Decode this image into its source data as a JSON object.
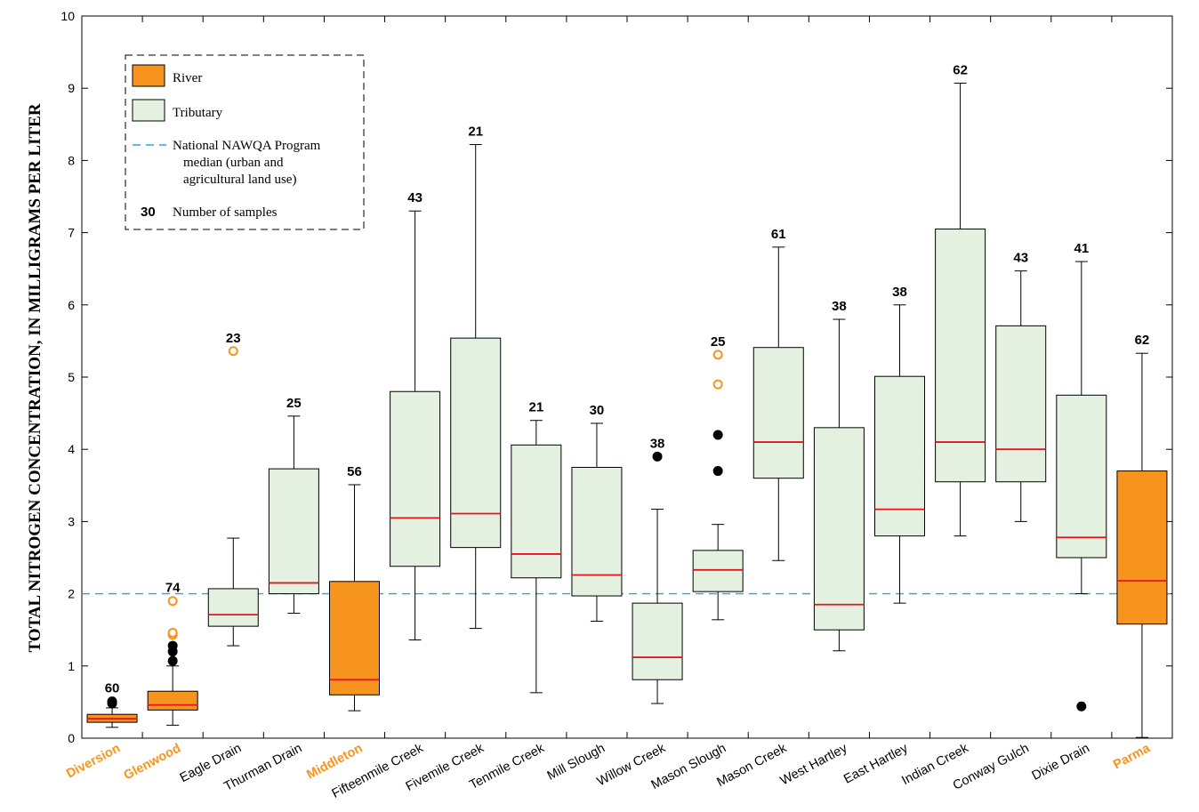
{
  "chart_data": {
    "type": "box",
    "ylabel": "TOTAL NITROGEN CONCENTRATION, IN MILLIGRAMS PER LITER",
    "ylim": [
      0,
      10
    ],
    "yticks": [
      0,
      1,
      2,
      3,
      4,
      5,
      6,
      7,
      8,
      9,
      10
    ],
    "reference_line": {
      "value": 2.0,
      "color": "#2aa5d8"
    },
    "colors": {
      "river": "#f7941d",
      "tributary": "#e4f1e0",
      "median": "#e8141b",
      "outlier_far": "#f7941d",
      "outlier_near": "#000000"
    },
    "legend": {
      "position": "top-left",
      "river_label": "River",
      "tributary_label": "Tributary",
      "reference_label_line1": "National NAWQA Program",
      "reference_label_line2": "median (urban and",
      "reference_label_line3": "agricultural land use)",
      "count_example": "30",
      "count_label": "Number of samples"
    },
    "sites": [
      {
        "name": "Diversion",
        "type": "river",
        "n": "60",
        "whisker_low": 0.15,
        "q1": 0.22,
        "median": 0.27,
        "q3": 0.33,
        "whisker_high": 0.42,
        "outliers_near": [
          0.48,
          0.51
        ],
        "outliers_far": []
      },
      {
        "name": "Glenwood",
        "type": "river",
        "n": "74",
        "whisker_low": 0.18,
        "q1": 0.39,
        "median": 0.46,
        "q3": 0.65,
        "whisker_high": 1.0,
        "outliers_near": [
          1.07,
          1.2,
          1.28
        ],
        "outliers_far": [
          1.43,
          1.46,
          1.9
        ]
      },
      {
        "name": "Eagle Drain",
        "type": "tributary",
        "n": "23",
        "whisker_low": 1.28,
        "q1": 1.55,
        "median": 1.71,
        "q3": 2.07,
        "whisker_high": 2.77,
        "outliers_near": [],
        "outliers_far": [
          5.36
        ]
      },
      {
        "name": "Thurman Drain",
        "type": "tributary",
        "n": "25",
        "whisker_low": 1.73,
        "q1": 2.0,
        "median": 2.15,
        "q3": 3.73,
        "whisker_high": 4.46,
        "outliers_near": [],
        "outliers_far": []
      },
      {
        "name": "Middleton",
        "type": "river",
        "n": "56",
        "whisker_low": 0.38,
        "q1": 0.6,
        "median": 0.81,
        "q3": 2.17,
        "whisker_high": 3.51,
        "outliers_near": [],
        "outliers_far": []
      },
      {
        "name": "Fifteenmile Creek",
        "type": "tributary",
        "n": "43",
        "whisker_low": 1.36,
        "q1": 2.38,
        "median": 3.05,
        "q3": 4.8,
        "whisker_high": 7.3,
        "outliers_near": [],
        "outliers_far": []
      },
      {
        "name": "Fivemile Creek",
        "type": "tributary",
        "n": "21",
        "whisker_low": 1.52,
        "q1": 2.64,
        "median": 3.11,
        "q3": 5.54,
        "whisker_high": 8.22,
        "outliers_near": [],
        "outliers_far": []
      },
      {
        "name": "Tenmile Creek",
        "type": "tributary",
        "n": "21",
        "whisker_low": 0.63,
        "q1": 2.22,
        "median": 2.55,
        "q3": 4.06,
        "whisker_high": 4.4,
        "outliers_near": [],
        "outliers_far": []
      },
      {
        "name": "Mill Slough",
        "type": "tributary",
        "n": "30",
        "whisker_low": 1.62,
        "q1": 1.97,
        "median": 2.26,
        "q3": 3.75,
        "whisker_high": 4.36,
        "outliers_near": [],
        "outliers_far": []
      },
      {
        "name": "Willow Creek",
        "type": "tributary",
        "n": "38",
        "whisker_low": 0.48,
        "q1": 0.81,
        "median": 1.12,
        "q3": 1.87,
        "whisker_high": 3.17,
        "outliers_near": [
          3.9
        ],
        "outliers_far": []
      },
      {
        "name": "Mason Slough",
        "type": "tributary",
        "n": "25",
        "whisker_low": 1.64,
        "q1": 2.03,
        "median": 2.33,
        "q3": 2.6,
        "whisker_high": 2.96,
        "outliers_near": [
          3.7,
          4.2
        ],
        "outliers_far": [
          4.9,
          5.31
        ]
      },
      {
        "name": "Mason Creek",
        "type": "tributary",
        "n": "61",
        "whisker_low": 2.46,
        "q1": 3.6,
        "median": 4.1,
        "q3": 5.41,
        "whisker_high": 6.8,
        "outliers_near": [],
        "outliers_far": []
      },
      {
        "name": "West Hartley",
        "type": "tributary",
        "n": "38",
        "whisker_low": 1.21,
        "q1": 1.5,
        "median": 1.85,
        "q3": 4.3,
        "whisker_high": 5.8,
        "outliers_near": [],
        "outliers_far": []
      },
      {
        "name": "East Hartley",
        "type": "tributary",
        "n": "38",
        "whisker_low": 1.87,
        "q1": 2.8,
        "median": 3.17,
        "q3": 5.01,
        "whisker_high": 6.0,
        "outliers_near": [],
        "outliers_far": []
      },
      {
        "name": "Indian Creek",
        "type": "tributary",
        "n": "62",
        "whisker_low": 2.8,
        "q1": 3.55,
        "median": 4.1,
        "q3": 7.05,
        "whisker_high": 9.07,
        "outliers_near": [],
        "outliers_far": []
      },
      {
        "name": "Conway Gulch",
        "type": "tributary",
        "n": "43",
        "whisker_low": 3.0,
        "q1": 3.55,
        "median": 4.0,
        "q3": 5.71,
        "whisker_high": 6.47,
        "outliers_near": [],
        "outliers_far": []
      },
      {
        "name": "Dixie Drain",
        "type": "tributary",
        "n": "41",
        "whisker_low": 2.0,
        "q1": 2.5,
        "median": 2.78,
        "q3": 4.75,
        "whisker_high": 6.6,
        "outliers_near": [
          0.44
        ],
        "outliers_far": []
      },
      {
        "name": "Parma",
        "type": "river",
        "n": "62",
        "whisker_low": 0.01,
        "q1": 1.58,
        "median": 2.18,
        "q3": 3.7,
        "whisker_high": 5.33,
        "outliers_near": [],
        "outliers_far": []
      }
    ]
  }
}
